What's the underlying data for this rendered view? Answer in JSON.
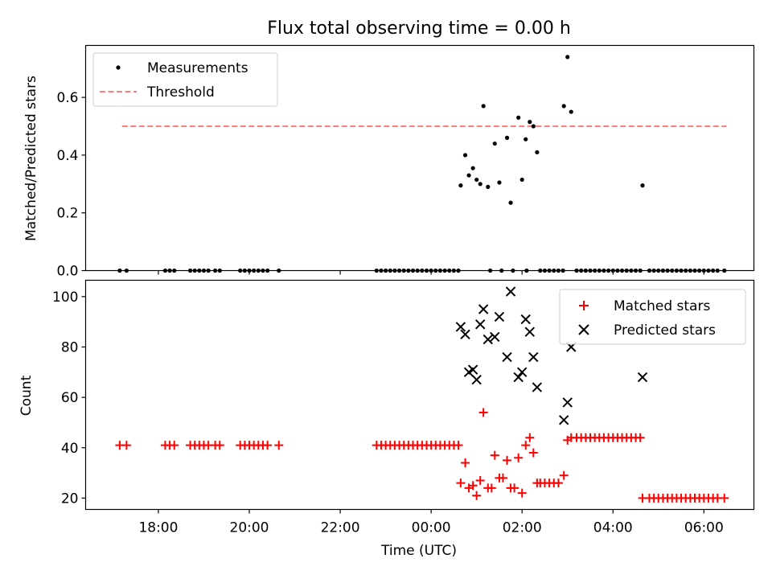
{
  "title": "Flux total observing time = 0.00 h",
  "xlabel": "Time (UTC)",
  "x_unit": "hours relative to 00:00 UTC",
  "xlim": [
    -7.6,
    7.1
  ],
  "x_ticks": [
    {
      "value": -6,
      "label": "18:00"
    },
    {
      "value": -4,
      "label": "20:00"
    },
    {
      "value": -2,
      "label": "22:00"
    },
    {
      "value": 0,
      "label": "00:00"
    },
    {
      "value": 2,
      "label": "02:00"
    },
    {
      "value": 4,
      "label": "04:00"
    },
    {
      "value": 6,
      "label": "06:00"
    }
  ],
  "colors": {
    "measure": "#000000",
    "threshold": "#ff7f7f",
    "matched": "#ff0000",
    "predicted": "#000000"
  },
  "chart_data": [
    {
      "type": "scatter",
      "panel": "top",
      "ylabel": "Matched/Predicted stars",
      "ylim": [
        0,
        0.78
      ],
      "y_ticks": [
        "0.0",
        "0.2",
        "0.4",
        "0.6"
      ],
      "legend": {
        "position": "top-left",
        "entries": [
          "Measurements",
          "Threshold"
        ]
      },
      "threshold": {
        "y": 0.5,
        "x_range": [
          -6.8,
          6.5
        ]
      },
      "measurements": [
        [
          -6.85,
          0
        ],
        [
          -6.7,
          0
        ],
        [
          -5.85,
          0
        ],
        [
          -5.75,
          0
        ],
        [
          -5.65,
          0
        ],
        [
          -5.3,
          0
        ],
        [
          -5.2,
          0
        ],
        [
          -5.1,
          0
        ],
        [
          -5.0,
          0
        ],
        [
          -4.9,
          0
        ],
        [
          -4.75,
          0
        ],
        [
          -4.65,
          0
        ],
        [
          -4.2,
          0
        ],
        [
          -4.1,
          0
        ],
        [
          -4.0,
          0
        ],
        [
          -3.9,
          0
        ],
        [
          -3.8,
          0
        ],
        [
          -3.7,
          0
        ],
        [
          -3.6,
          0
        ],
        [
          -3.35,
          0
        ],
        [
          -1.2,
          0
        ],
        [
          -1.1,
          0
        ],
        [
          -1.0,
          0
        ],
        [
          -0.9,
          0
        ],
        [
          -0.8,
          0
        ],
        [
          -0.7,
          0
        ],
        [
          -0.6,
          0
        ],
        [
          -0.5,
          0
        ],
        [
          -0.4,
          0
        ],
        [
          -0.3,
          0
        ],
        [
          -0.2,
          0
        ],
        [
          -0.1,
          0
        ],
        [
          0.0,
          0
        ],
        [
          0.1,
          0
        ],
        [
          0.2,
          0
        ],
        [
          0.3,
          0
        ],
        [
          0.4,
          0
        ],
        [
          0.5,
          0
        ],
        [
          0.6,
          0
        ],
        [
          1.3,
          0
        ],
        [
          1.55,
          0
        ],
        [
          1.8,
          0
        ],
        [
          2.1,
          0
        ],
        [
          2.4,
          0
        ],
        [
          2.5,
          0
        ],
        [
          2.6,
          0
        ],
        [
          2.7,
          0
        ],
        [
          2.8,
          0
        ],
        [
          2.9,
          0
        ],
        [
          3.2,
          0
        ],
        [
          3.3,
          0
        ],
        [
          3.4,
          0
        ],
        [
          3.5,
          0
        ],
        [
          3.6,
          0
        ],
        [
          3.7,
          0
        ],
        [
          3.8,
          0
        ],
        [
          3.9,
          0
        ],
        [
          4.0,
          0
        ],
        [
          4.1,
          0
        ],
        [
          4.2,
          0
        ],
        [
          4.3,
          0
        ],
        [
          4.4,
          0
        ],
        [
          4.5,
          0
        ],
        [
          4.6,
          0
        ],
        [
          4.8,
          0
        ],
        [
          4.9,
          0
        ],
        [
          5.0,
          0
        ],
        [
          5.1,
          0
        ],
        [
          5.2,
          0
        ],
        [
          5.3,
          0
        ],
        [
          5.4,
          0
        ],
        [
          5.5,
          0
        ],
        [
          5.6,
          0
        ],
        [
          5.7,
          0
        ],
        [
          5.8,
          0
        ],
        [
          5.9,
          0
        ],
        [
          6.0,
          0
        ],
        [
          6.1,
          0
        ],
        [
          6.2,
          0
        ],
        [
          6.3,
          0
        ],
        [
          6.45,
          0
        ],
        [
          0.65,
          0.295
        ],
        [
          0.75,
          0.4
        ],
        [
          0.83,
          0.33
        ],
        [
          0.92,
          0.355
        ],
        [
          1.0,
          0.315
        ],
        [
          1.08,
          0.3
        ],
        [
          1.15,
          0.57
        ],
        [
          1.25,
          0.29
        ],
        [
          1.4,
          0.44
        ],
        [
          1.5,
          0.305
        ],
        [
          1.67,
          0.46
        ],
        [
          1.75,
          0.235
        ],
        [
          1.92,
          0.53
        ],
        [
          2.0,
          0.315
        ],
        [
          2.08,
          0.455
        ],
        [
          2.17,
          0.515
        ],
        [
          2.25,
          0.5
        ],
        [
          2.33,
          0.41
        ],
        [
          2.92,
          0.57
        ],
        [
          3.0,
          0.74
        ],
        [
          3.08,
          0.55
        ],
        [
          4.65,
          0.295
        ]
      ]
    },
    {
      "type": "scatter",
      "panel": "bottom",
      "ylabel": "Count",
      "ylim": [
        15.5,
        106.5
      ],
      "y_ticks": [
        "20",
        "40",
        "60",
        "80",
        "100"
      ],
      "legend": {
        "position": "top-right",
        "entries": [
          "Matched stars",
          "Predicted stars"
        ]
      },
      "matched": [
        [
          -6.85,
          41
        ],
        [
          -6.7,
          41
        ],
        [
          -5.85,
          41
        ],
        [
          -5.75,
          41
        ],
        [
          -5.65,
          41
        ],
        [
          -5.3,
          41
        ],
        [
          -5.2,
          41
        ],
        [
          -5.1,
          41
        ],
        [
          -5.0,
          41
        ],
        [
          -4.9,
          41
        ],
        [
          -4.75,
          41
        ],
        [
          -4.65,
          41
        ],
        [
          -4.2,
          41
        ],
        [
          -4.1,
          41
        ],
        [
          -4.0,
          41
        ],
        [
          -3.9,
          41
        ],
        [
          -3.8,
          41
        ],
        [
          -3.7,
          41
        ],
        [
          -3.6,
          41
        ],
        [
          -3.35,
          41
        ],
        [
          -1.2,
          41
        ],
        [
          -1.1,
          41
        ],
        [
          -1.0,
          41
        ],
        [
          -0.9,
          41
        ],
        [
          -0.8,
          41
        ],
        [
          -0.7,
          41
        ],
        [
          -0.6,
          41
        ],
        [
          -0.5,
          41
        ],
        [
          -0.4,
          41
        ],
        [
          -0.3,
          41
        ],
        [
          -0.2,
          41
        ],
        [
          -0.1,
          41
        ],
        [
          0.0,
          41
        ],
        [
          0.1,
          41
        ],
        [
          0.2,
          41
        ],
        [
          0.3,
          41
        ],
        [
          0.4,
          41
        ],
        [
          0.5,
          41
        ],
        [
          0.6,
          41
        ],
        [
          0.65,
          26
        ],
        [
          0.75,
          34
        ],
        [
          0.83,
          24
        ],
        [
          0.92,
          25
        ],
        [
          1.0,
          21
        ],
        [
          1.08,
          27
        ],
        [
          1.15,
          54
        ],
        [
          1.25,
          24
        ],
        [
          1.33,
          24
        ],
        [
          1.4,
          37
        ],
        [
          1.5,
          28
        ],
        [
          1.58,
          28
        ],
        [
          1.67,
          35
        ],
        [
          1.75,
          24
        ],
        [
          1.83,
          24
        ],
        [
          1.92,
          36
        ],
        [
          2.0,
          22
        ],
        [
          2.08,
          41
        ],
        [
          2.17,
          44
        ],
        [
          2.25,
          38
        ],
        [
          2.33,
          26
        ],
        [
          2.4,
          26
        ],
        [
          2.5,
          26
        ],
        [
          2.6,
          26
        ],
        [
          2.7,
          26
        ],
        [
          2.8,
          26
        ],
        [
          2.92,
          29
        ],
        [
          3.0,
          43
        ],
        [
          3.08,
          44
        ],
        [
          3.2,
          44
        ],
        [
          3.3,
          44
        ],
        [
          3.4,
          44
        ],
        [
          3.5,
          44
        ],
        [
          3.6,
          44
        ],
        [
          3.7,
          44
        ],
        [
          3.8,
          44
        ],
        [
          3.9,
          44
        ],
        [
          4.0,
          44
        ],
        [
          4.1,
          44
        ],
        [
          4.2,
          44
        ],
        [
          4.3,
          44
        ],
        [
          4.4,
          44
        ],
        [
          4.5,
          44
        ],
        [
          4.6,
          44
        ],
        [
          4.65,
          20
        ],
        [
          4.8,
          20
        ],
        [
          4.9,
          20
        ],
        [
          5.0,
          20
        ],
        [
          5.1,
          20
        ],
        [
          5.2,
          20
        ],
        [
          5.3,
          20
        ],
        [
          5.4,
          20
        ],
        [
          5.5,
          20
        ],
        [
          5.6,
          20
        ],
        [
          5.7,
          20
        ],
        [
          5.8,
          20
        ],
        [
          5.9,
          20
        ],
        [
          6.0,
          20
        ],
        [
          6.1,
          20
        ],
        [
          6.2,
          20
        ],
        [
          6.3,
          20
        ],
        [
          6.45,
          20
        ]
      ],
      "predicted": [
        [
          0.65,
          88
        ],
        [
          0.75,
          85
        ],
        [
          0.83,
          70
        ],
        [
          0.92,
          71
        ],
        [
          1.0,
          67
        ],
        [
          1.08,
          89
        ],
        [
          1.15,
          95
        ],
        [
          1.25,
          83
        ],
        [
          1.4,
          84
        ],
        [
          1.5,
          92
        ],
        [
          1.67,
          76
        ],
        [
          1.75,
          102
        ],
        [
          1.92,
          68
        ],
        [
          2.0,
          70
        ],
        [
          2.08,
          91
        ],
        [
          2.17,
          86
        ],
        [
          2.25,
          76
        ],
        [
          2.33,
          64
        ],
        [
          2.92,
          51
        ],
        [
          3.0,
          58
        ],
        [
          3.08,
          80
        ],
        [
          4.65,
          68
        ]
      ]
    }
  ]
}
